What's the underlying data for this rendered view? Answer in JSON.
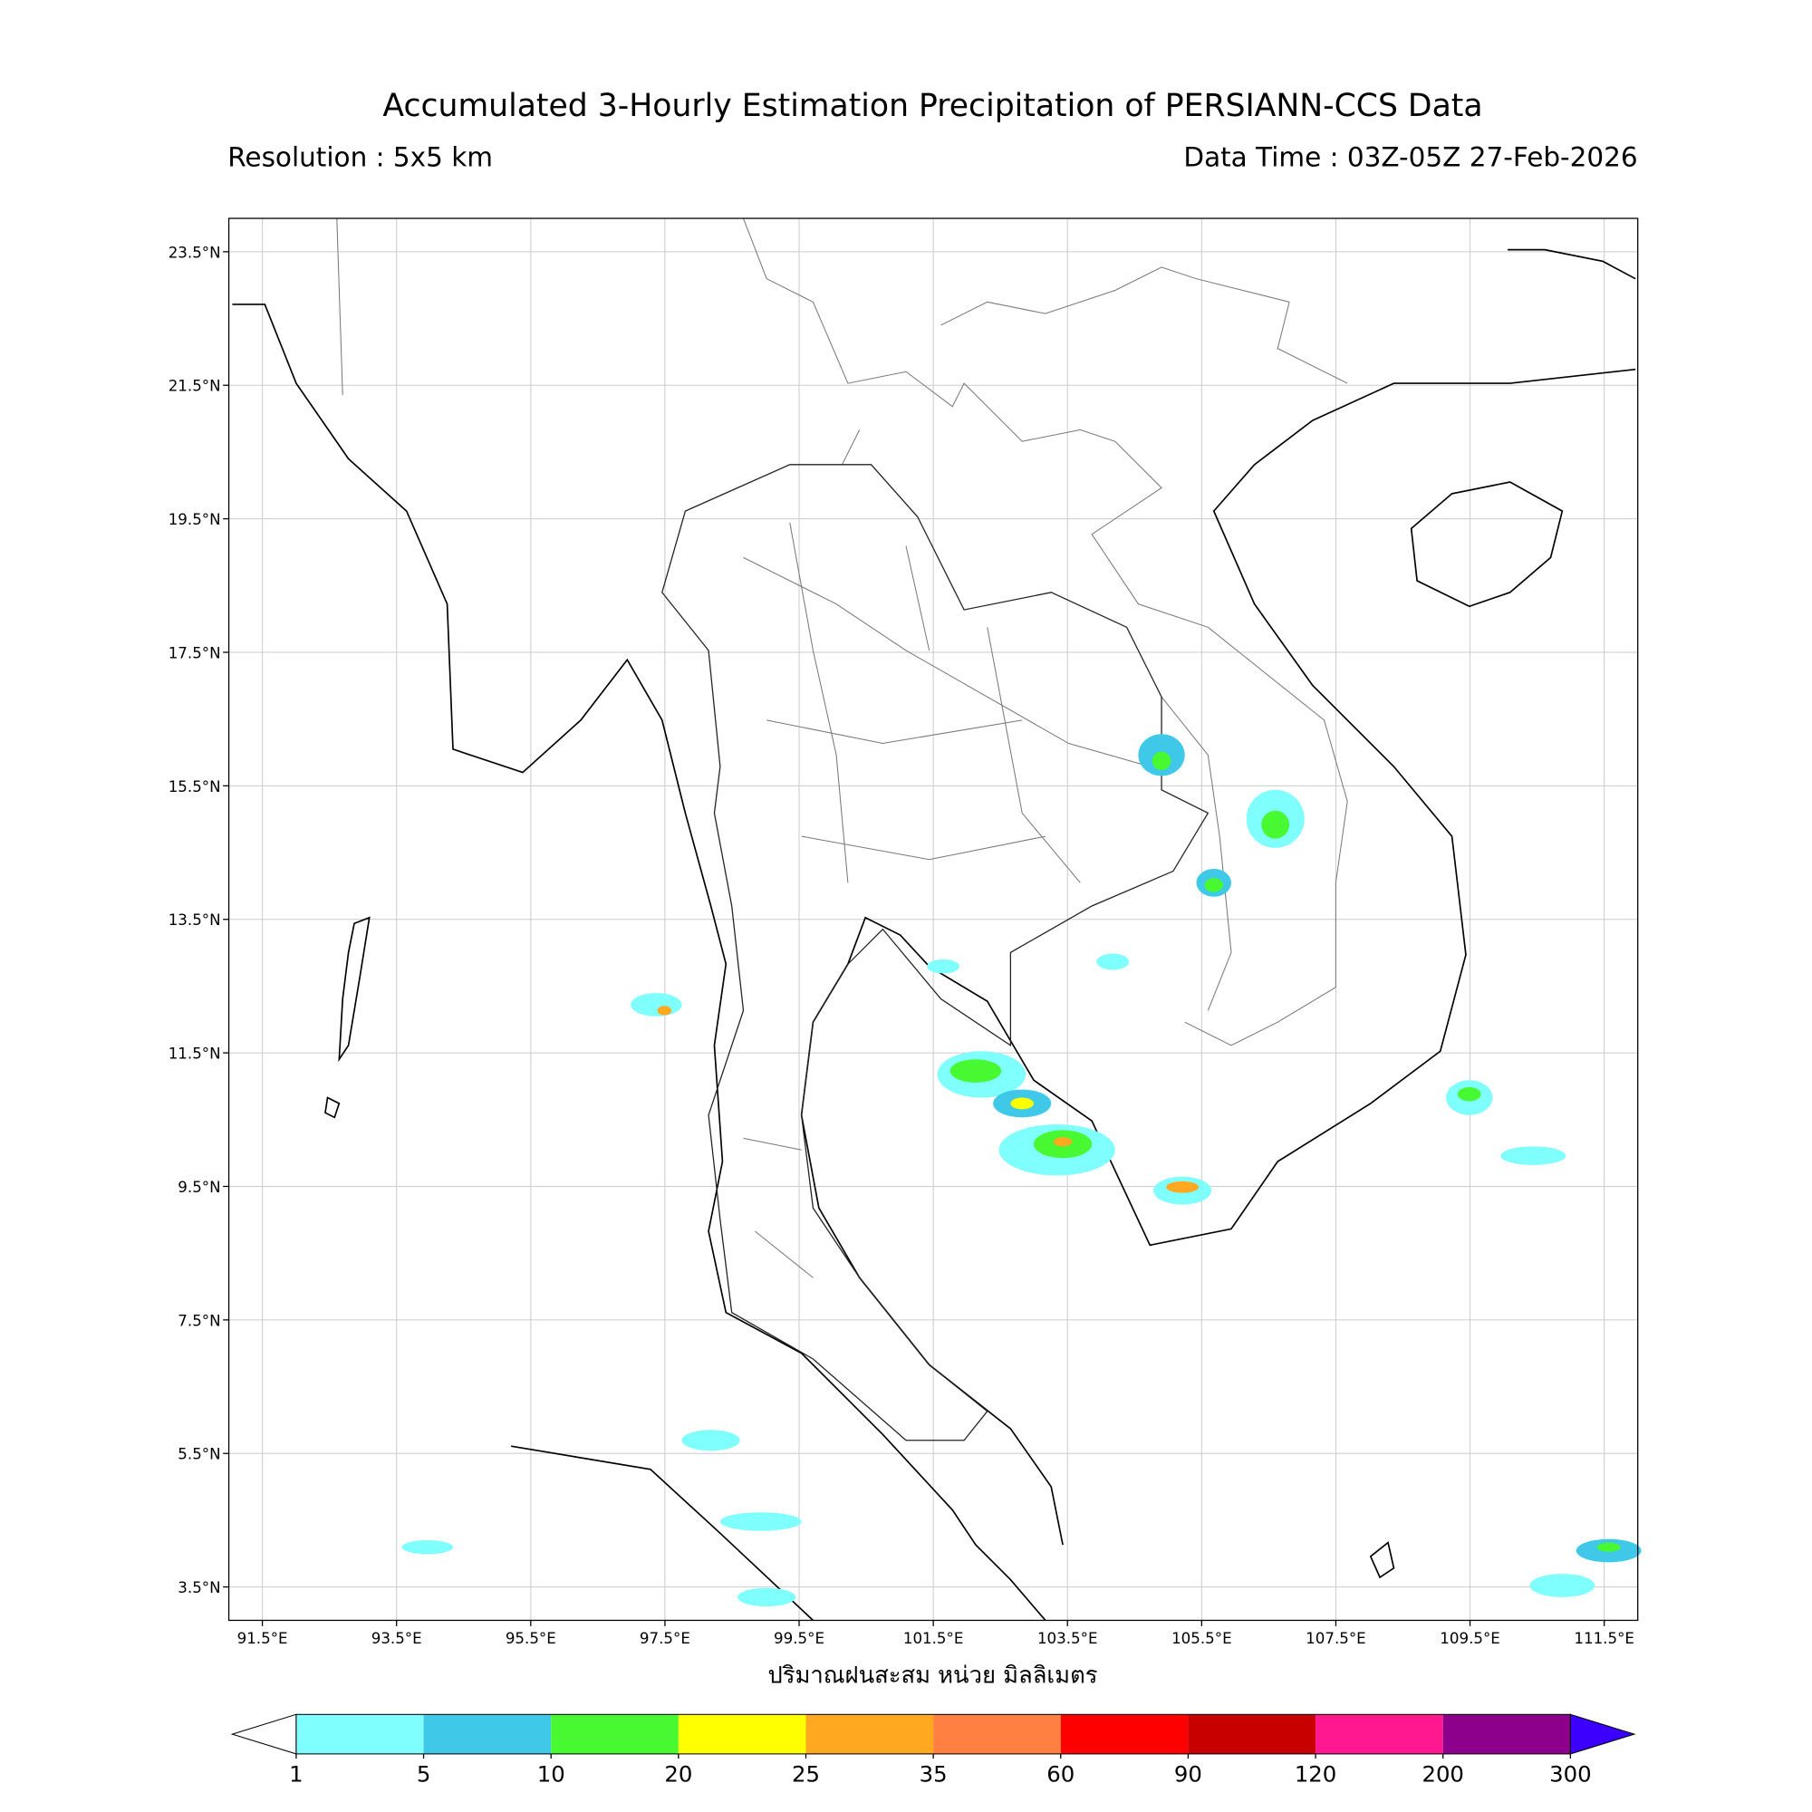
{
  "chart_data": {
    "type": "map",
    "title": "Accumulated 3-Hourly Estimation Precipitation of PERSIANN-CCS Data",
    "subtitle_left": "Resolution : 5x5 km",
    "subtitle_right": "Data Time : 03Z-05Z 27-Feb-2026",
    "xlabel": "ปริมาณฝนสะสม หน่วย มิลลิเมตร",
    "xlim": [
      91,
      112
    ],
    "ylim": [
      3,
      24
    ],
    "grid": true,
    "xticks": [
      {
        "value": 91.5,
        "label": "91.5°E"
      },
      {
        "value": 93.5,
        "label": "93.5°E"
      },
      {
        "value": 95.5,
        "label": "95.5°E"
      },
      {
        "value": 97.5,
        "label": "97.5°E"
      },
      {
        "value": 99.5,
        "label": "99.5°E"
      },
      {
        "value": 101.5,
        "label": "101.5°E"
      },
      {
        "value": 103.5,
        "label": "103.5°E"
      },
      {
        "value": 105.5,
        "label": "105.5°E"
      },
      {
        "value": 107.5,
        "label": "107.5°E"
      },
      {
        "value": 109.5,
        "label": "109.5°E"
      },
      {
        "value": 111.5,
        "label": "111.5°E"
      }
    ],
    "yticks": [
      {
        "value": 3.5,
        "label": "3.5°N"
      },
      {
        "value": 5.5,
        "label": "5.5°N"
      },
      {
        "value": 7.5,
        "label": "7.5°N"
      },
      {
        "value": 9.5,
        "label": "9.5°N"
      },
      {
        "value": 11.5,
        "label": "11.5°N"
      },
      {
        "value": 13.5,
        "label": "13.5°N"
      },
      {
        "value": 15.5,
        "label": "15.5°N"
      },
      {
        "value": 17.5,
        "label": "17.5°N"
      },
      {
        "value": 19.5,
        "label": "19.5°N"
      },
      {
        "value": 21.5,
        "label": "21.5°N"
      },
      {
        "value": 23.5,
        "label": "23.5°N"
      }
    ],
    "colorbar": {
      "bounds": [
        1,
        5,
        10,
        20,
        25,
        35,
        60,
        90,
        120,
        200,
        300
      ],
      "colors": [
        "#80ffff",
        "#40c8e8",
        "#48f830",
        "#ffff00",
        "#ffa820",
        "#ff8040",
        "#ff0000",
        "#c80000",
        "#ff1890",
        "#8c008c"
      ],
      "under_color": "#ffffff",
      "over_color": "#3c00ff"
    }
  }
}
